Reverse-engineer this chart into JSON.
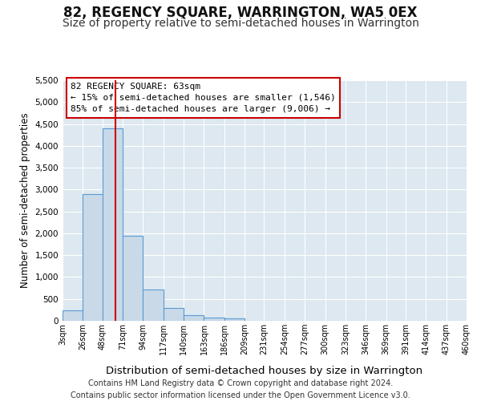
{
  "title_line1": "82, REGENCY SQUARE, WARRINGTON, WA5 0EX",
  "title_line2": "Size of property relative to semi-detached houses in Warrington",
  "xlabel": "Distribution of semi-detached houses by size in Warrington",
  "ylabel": "Number of semi-detached properties",
  "footer_line1": "Contains HM Land Registry data © Crown copyright and database right 2024.",
  "footer_line2": "Contains public sector information licensed under the Open Government Licence v3.0.",
  "annotation_title": "82 REGENCY SQUARE: 63sqm",
  "annotation_line2": "← 15% of semi-detached houses are smaller (1,546)",
  "annotation_line3": "85% of semi-detached houses are larger (9,006) →",
  "property_size_sqm": 63,
  "bar_categories": [
    "3sqm",
    "26sqm",
    "48sqm",
    "71sqm",
    "94sqm",
    "117sqm",
    "140sqm",
    "163sqm",
    "186sqm",
    "209sqm",
    "231sqm",
    "254sqm",
    "277sqm",
    "300sqm",
    "323sqm",
    "346sqm",
    "369sqm",
    "391sqm",
    "414sqm",
    "437sqm",
    "460sqm"
  ],
  "bar_values": [
    230,
    2900,
    4400,
    1950,
    720,
    290,
    120,
    80,
    60,
    0,
    0,
    0,
    0,
    0,
    0,
    0,
    0,
    0,
    0,
    0,
    0
  ],
  "bar_edges": [
    3,
    26,
    48,
    71,
    94,
    117,
    140,
    163,
    186,
    209,
    231,
    254,
    277,
    300,
    323,
    346,
    369,
    391,
    414,
    437,
    460
  ],
  "bar_color_fill": "#c9d9e8",
  "bar_color_edge": "#5b9bd5",
  "vline_color": "#cc0000",
  "annotation_box_edge": "#cc0000",
  "background_color": "#dde8f0",
  "ylim": [
    0,
    5500
  ],
  "yticks": [
    0,
    500,
    1000,
    1500,
    2000,
    2500,
    3000,
    3500,
    4000,
    4500,
    5000,
    5500
  ],
  "grid_color": "#ffffff",
  "title1_fontsize": 12,
  "title2_fontsize": 10,
  "xlabel_fontsize": 9.5,
  "ylabel_fontsize": 8.5,
  "tick_fontsize": 7.5,
  "annotation_fontsize": 8,
  "footer_fontsize": 7
}
